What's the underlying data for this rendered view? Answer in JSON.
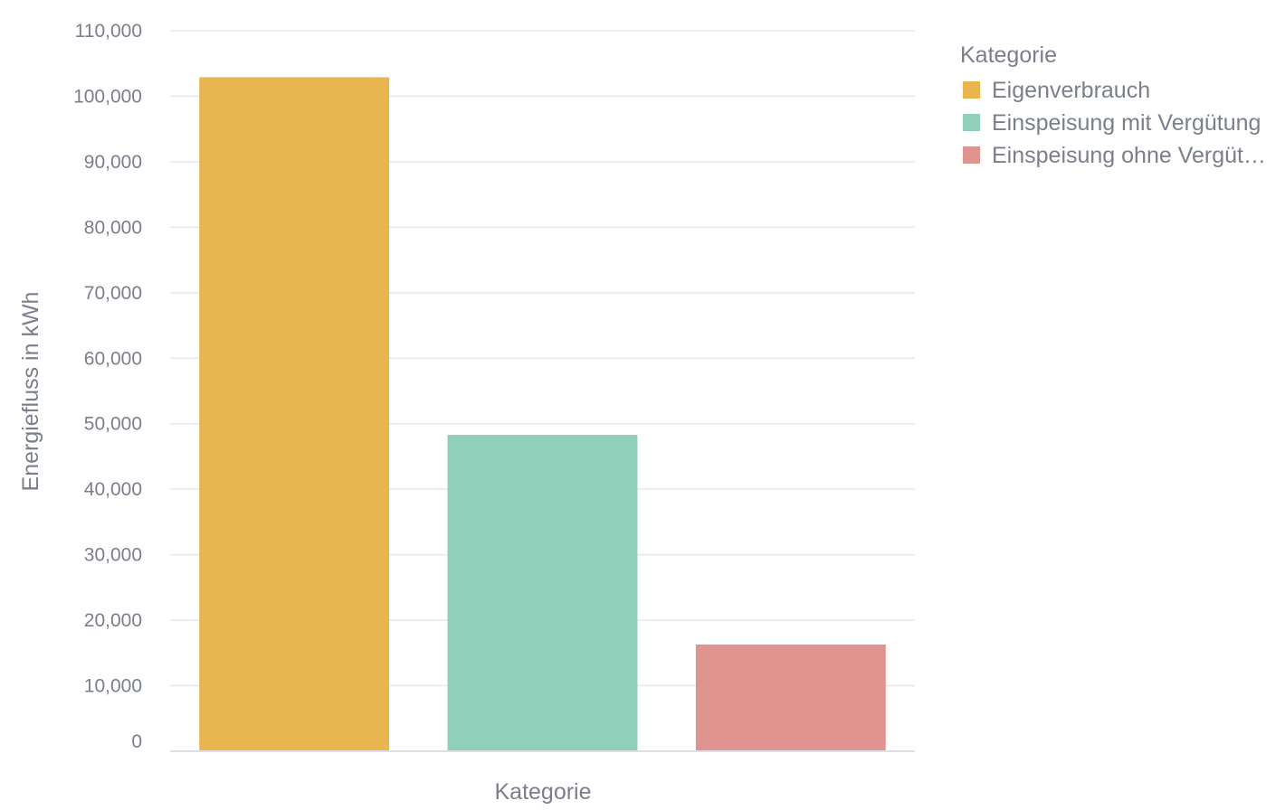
{
  "chart_data": {
    "type": "bar",
    "categories": [
      "Eigenverbrauch",
      "Einspeisung mit Vergütung",
      "Einspeisung ohne Vergütung"
    ],
    "values": [
      102900,
      48300,
      16300
    ],
    "colors": [
      "#e9b54e",
      "#90cfb9",
      "#e0948f"
    ],
    "xlabel": "Kategorie",
    "ylabel": "Energiefluss in kWh",
    "ylim": [
      0,
      110000
    ],
    "yticks": [
      0,
      10000,
      20000,
      30000,
      40000,
      50000,
      60000,
      70000,
      80000,
      90000,
      100000,
      110000
    ],
    "ytick_labels": [
      "0",
      "10,000",
      "20,000",
      "30,000",
      "40,000",
      "50,000",
      "60,000",
      "70,000",
      "80,000",
      "90,000",
      "100,000",
      "110,000"
    ],
    "grid": true,
    "legend": {
      "title": "Kategorie",
      "position": "top-right",
      "labels": [
        "Eigenverbrauch",
        "Einspeisung mit Vergütung",
        "Einspeisung ohne Vergüt…"
      ]
    }
  }
}
